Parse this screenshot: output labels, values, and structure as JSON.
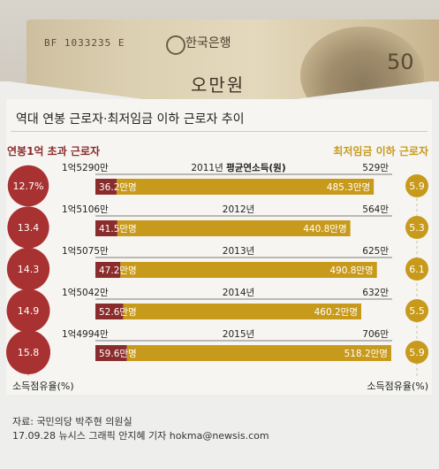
{
  "banner": {
    "serial": "BF 1033235 E",
    "bank": "한국은행",
    "value": "오만원",
    "digits": "50"
  },
  "title": "역대 연봉 근로자·최저임금 이하 근로자 추이",
  "left_header": "연봉1억 초과 근로자",
  "right_header": "최저임금 이하 근로자",
  "left_axis_label": "소득점유율(%)",
  "right_axis_label": "소득점유율(%)",
  "source": "자료: 국민의당 박주현 의원실",
  "credit": "17.09.28 뉴시스 그래픽 안지혜 기자 hokma@newsis.com",
  "colors": {
    "high": "#8b2c2c",
    "low": "#c89a1b",
    "high_circle": "#a83232"
  },
  "chart_data": {
    "type": "bar",
    "categories": [
      "2011년",
      "2012년",
      "2013년",
      "2014년",
      "2015년"
    ],
    "annual_income_label": "평균연소득(원)",
    "series": [
      {
        "name": "연봉1억 초과 근로자",
        "values": [
          36.2,
          41.5,
          47.2,
          52.6,
          59.6
        ],
        "value_labels": [
          "36.2만명",
          "41.5만명",
          "47.2만명",
          "52.6만명",
          "59.6만명"
        ],
        "avg_income": [
          "1억5290만",
          "1억5106만",
          "1억5075만",
          "1억5042만",
          "1억4994만"
        ],
        "income_share": [
          "12.7%",
          "13.4",
          "14.3",
          "14.9",
          "15.8"
        ]
      },
      {
        "name": "최저임금 이하 근로자",
        "values": [
          485.3,
          440.8,
          490.8,
          460.2,
          518.2
        ],
        "value_labels": [
          "485.3만명",
          "440.8만명",
          "490.8만명",
          "460.2만명",
          "518.2만명"
        ],
        "avg_income": [
          "529만",
          "564만",
          "625만",
          "632만",
          "706만"
        ],
        "income_share": [
          "5.9",
          "5.3",
          "6.1",
          "5.5",
          "5.9"
        ]
      }
    ],
    "share_values": {
      "high": [
        12.7,
        13.4,
        14.3,
        14.9,
        15.8
      ],
      "low": [
        5.9,
        5.3,
        6.1,
        5.5,
        5.9
      ]
    },
    "scale_max": 520
  }
}
